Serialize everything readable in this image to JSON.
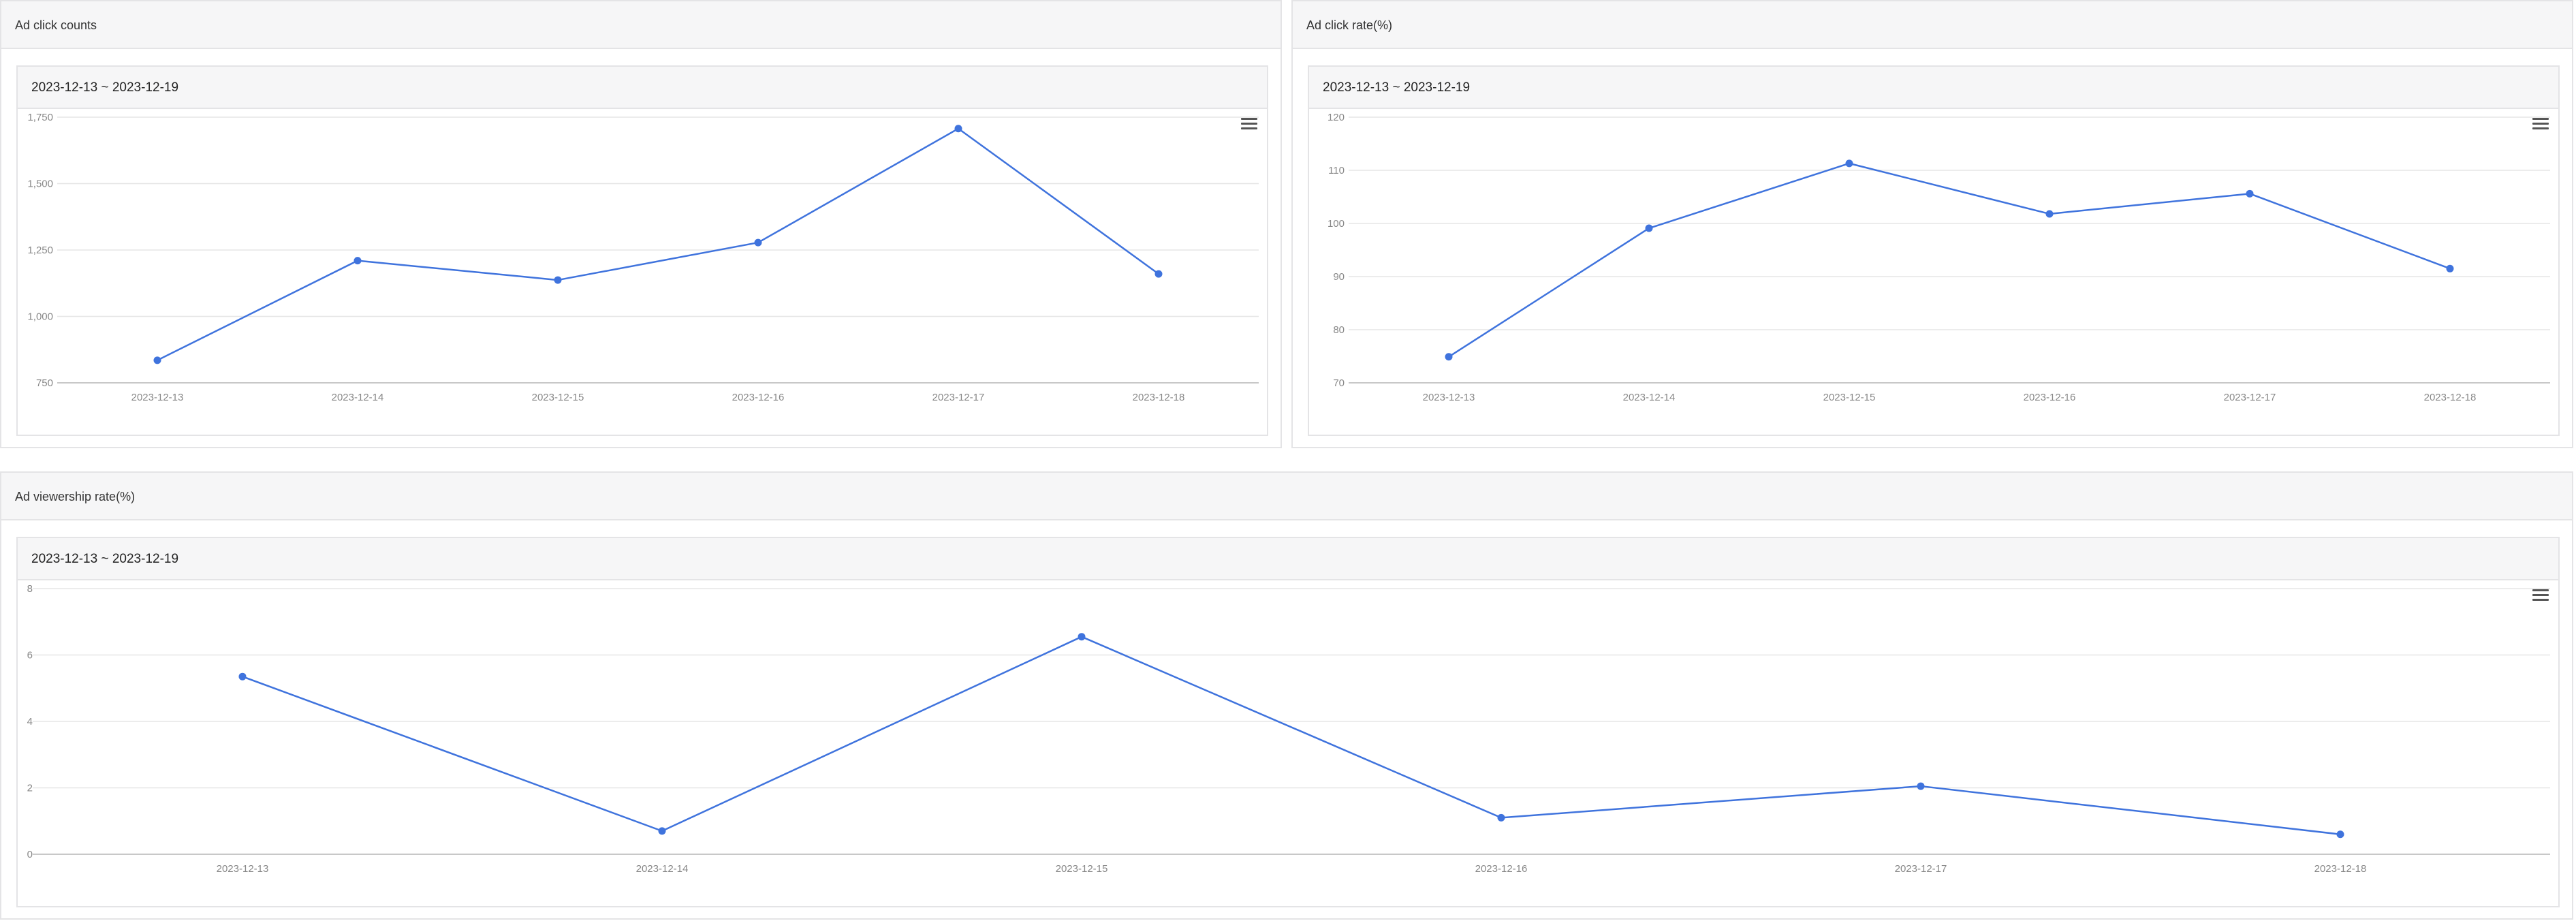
{
  "colors": {
    "series": "#3f73dd",
    "grid": "#e6e6e6",
    "axis": "#c8c8c8",
    "tick_text": "#888888"
  },
  "icons": {
    "chart_menu": "hamburger-menu-icon"
  },
  "panels": [
    {
      "title": "Ad click counts",
      "card_title": "2023-12-13 ~ 2023-12-19"
    },
    {
      "title": "Ad click rate(%)",
      "card_title": "2023-12-13 ~ 2023-12-19"
    },
    {
      "title": "Ad viewership rate(%)",
      "card_title": "2023-12-13 ~ 2023-12-19"
    }
  ],
  "chart_data": [
    {
      "type": "line",
      "title": "Ad click counts",
      "subtitle": "2023-12-13 ~ 2023-12-19",
      "x": [
        "2023-12-13",
        "2023-12-14",
        "2023-12-15",
        "2023-12-16",
        "2023-12-17",
        "2023-12-18"
      ],
      "series": [
        {
          "values": [
            835,
            1210,
            1137,
            1278,
            1707,
            1160
          ]
        }
      ],
      "ylim": [
        750,
        1750
      ],
      "yticks": [
        750,
        1000,
        1250,
        1500,
        1750
      ],
      "ytick_labels": [
        "750",
        "1,000",
        "1,250",
        "1,500",
        "1,750"
      ],
      "grid": true,
      "legend": "none"
    },
    {
      "type": "line",
      "title": "Ad click rate(%)",
      "subtitle": "2023-12-13 ~ 2023-12-19",
      "x": [
        "2023-12-13",
        "2023-12-14",
        "2023-12-15",
        "2023-12-16",
        "2023-12-17",
        "2023-12-18"
      ],
      "series": [
        {
          "values": [
            74.9,
            99.1,
            111.3,
            101.8,
            105.6,
            91.5
          ]
        }
      ],
      "ylim": [
        70,
        120
      ],
      "yticks": [
        70,
        80,
        90,
        100,
        110,
        120
      ],
      "ytick_labels": [
        "70",
        "80",
        "90",
        "100",
        "110",
        "120"
      ],
      "grid": true,
      "legend": "none"
    },
    {
      "type": "line",
      "title": "Ad viewership rate(%)",
      "subtitle": "2023-12-13 ~ 2023-12-19",
      "x": [
        "2023-12-13",
        "2023-12-14",
        "2023-12-15",
        "2023-12-16",
        "2023-12-17",
        "2023-12-18"
      ],
      "series": [
        {
          "values": [
            5.35,
            0.7,
            6.55,
            1.1,
            2.05,
            0.6
          ]
        }
      ],
      "ylim": [
        0,
        8
      ],
      "yticks": [
        0,
        2,
        4,
        6,
        8
      ],
      "ytick_labels": [
        "0",
        "2",
        "4",
        "6",
        "8"
      ],
      "grid": true,
      "legend": "none"
    }
  ]
}
